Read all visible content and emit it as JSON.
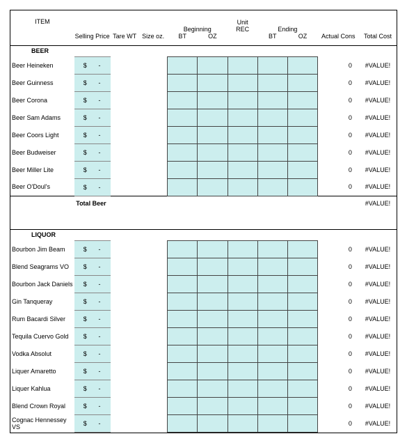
{
  "colors": {
    "cell_bg": "#cceeee",
    "border": "#000000",
    "grid_border": "#444444"
  },
  "headers": {
    "item": "ITEM",
    "selling_price": "Selling Price",
    "tare_wt": "Tare WT",
    "size_oz": "Size oz.",
    "beginning": "Beginning",
    "unit": "Unit",
    "rec": "REC",
    "ending": "Ending",
    "bt": "BT",
    "oz": "OZ",
    "actual_cons": "Actual Cons",
    "total_cost": "Total Cost"
  },
  "price_symbol": "$",
  "price_dash": "-",
  "cons_zero": "0",
  "value_err": "#VALUE!",
  "sections": [
    {
      "category": "BEER",
      "total_label": "Total Beer",
      "items": [
        "Beer Heineken",
        "Beer Guinness",
        "Beer Corona",
        "Beer Sam Adams",
        "Beer Coors Light",
        "Beer Budweiser",
        "Beer Miller Lite",
        "Beer O'Doul's"
      ]
    },
    {
      "category": "LIQUOR",
      "total_label": "",
      "items": [
        "Bourbon Jim Beam",
        "Blend Seagrams VO",
        "Bourbon Jack Daniels",
        "Gin Tanqueray",
        "Rum Bacardi Silver",
        "Tequila Cuervo Gold",
        "Vodka Absolut",
        "Liquer Amaretto",
        "Liquer Kahlua",
        "Blend Crown Royal",
        "Cognac Hennessey VS"
      ]
    }
  ]
}
